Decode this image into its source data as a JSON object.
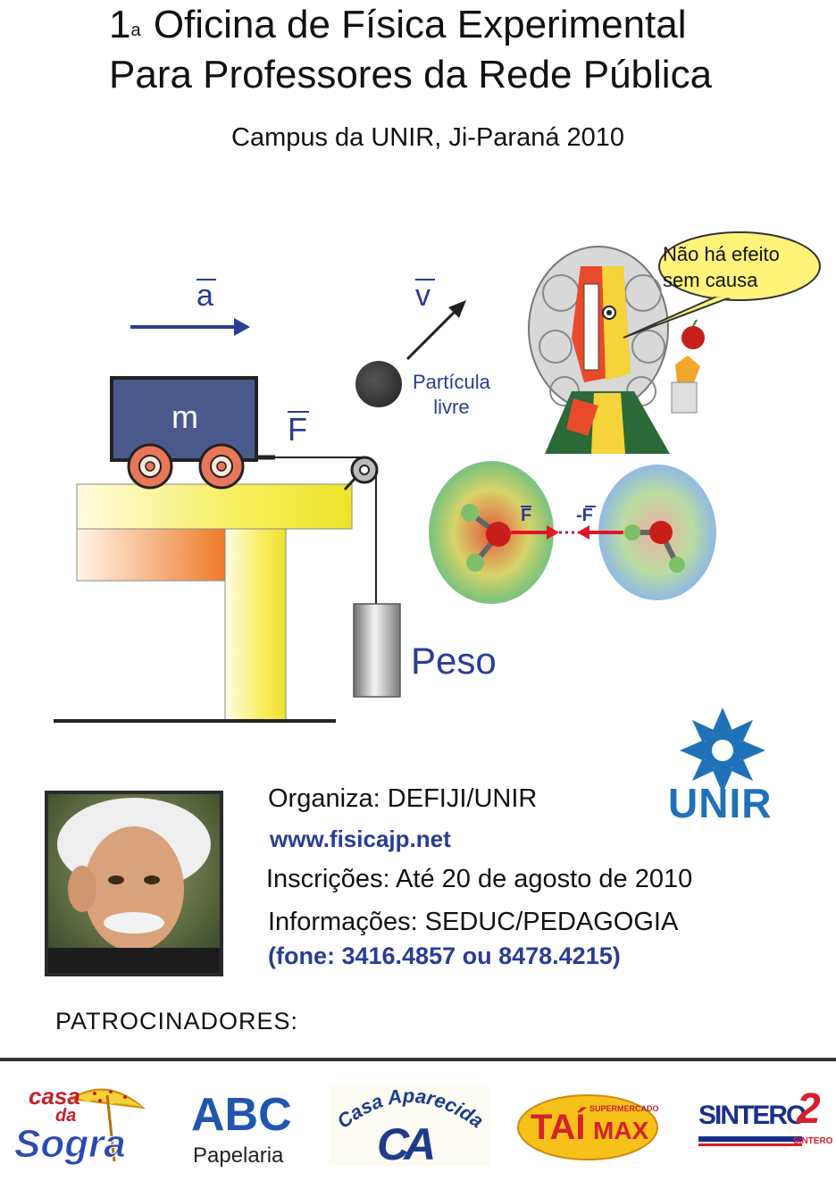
{
  "header": {
    "ordinal": "1",
    "ordinal_sup": "a",
    "title_line1": "Oficina de Física Experimental",
    "title_line2": "Para Professores da Rede Pública",
    "subtitle": "Campus da UNIR, Ji-Paraná 2010"
  },
  "diagram": {
    "accel_label": "a",
    "velocity_label": "v",
    "mass_label": "m",
    "force_label": "F",
    "particle_label_line1": "Partícula",
    "particle_label_line2": "livre",
    "weight_label": "Peso",
    "newton_speech_line1": "Não há efeito",
    "newton_speech_line2": "sem causa",
    "molecule_force_left": "F",
    "molecule_force_right": "-F"
  },
  "info": {
    "organizer": "Organiza: DEFIJI/UNIR",
    "website": "www.fisicajp.net",
    "registration": "Inscrições: Até 20 de agosto de 2010",
    "information": "Informações: SEDUC/PEDAGOGIA",
    "phone": "(fone: 3416.4857 ou 8478.4215)"
  },
  "unir_logo_text": "UNIR",
  "sponsors": {
    "heading": "PATROCINADORES:",
    "casa_da_sogra": {
      "line1": "casa",
      "line2": "da",
      "line3": "Sogra"
    },
    "abc": {
      "name": "ABC",
      "sub": "Papelaria"
    },
    "casa_aparecida": {
      "name": "Casa Aparecida",
      "mark": "CA"
    },
    "tai_max": {
      "top": "SUPERMERCADO",
      "left": "TAÍ",
      "right": "MAX"
    },
    "sintero": {
      "name": "SINTERO",
      "num": "2",
      "small": "SINTERO"
    }
  },
  "colors": {
    "accent_blue": "#2a3c93",
    "table_yellow": "#f2ea2e",
    "cart_blue": "#4a5a8c",
    "wheel_orange": "#e8775a",
    "unir_blue": "#1f72b8"
  }
}
